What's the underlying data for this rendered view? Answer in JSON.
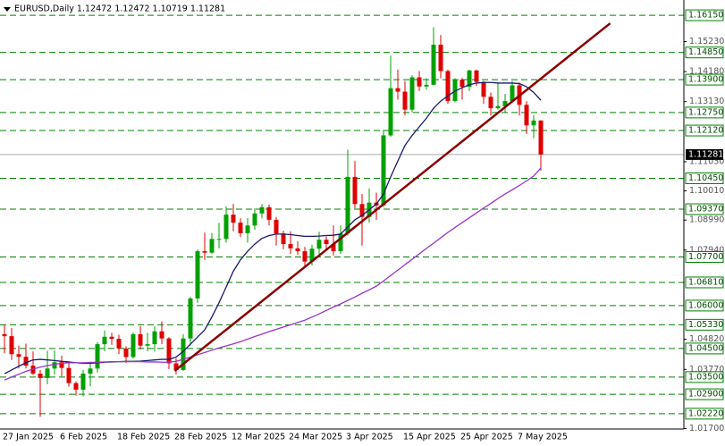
{
  "chart_data": {
    "type": "candlestick",
    "title": "EURUSD,Daily  1.12472 1.12472 1.10719 1.11281",
    "categories": [
      "27 Jan 2025",
      null,
      null,
      null,
      null,
      null,
      null,
      null,
      "6 Feb 2025",
      null,
      null,
      null,
      null,
      null,
      null,
      null,
      "18 Feb 2025",
      null,
      null,
      null,
      null,
      null,
      null,
      null,
      "28 Feb 2025",
      null,
      null,
      null,
      null,
      null,
      null,
      null,
      "12 Mar 2025",
      null,
      null,
      null,
      null,
      null,
      null,
      null,
      "24 Mar 2025",
      null,
      null,
      null,
      null,
      null,
      null,
      null,
      "3 Apr 2025",
      null,
      null,
      null,
      null,
      null,
      null,
      null,
      "15 Apr 2025",
      null,
      null,
      null,
      null,
      null,
      null,
      null,
      "25 Apr 2025",
      null,
      null,
      null,
      null,
      null,
      null,
      null,
      "7 May 2025",
      null,
      null,
      null
    ],
    "open": [
      1.05,
      1.0493,
      1.043,
      1.0421,
      1.039,
      1.0362,
      1.0347,
      1.038,
      1.0402,
      1.0382,
      1.0329,
      1.0306,
      1.0362,
      1.038,
      1.0465,
      1.0491,
      1.0484,
      1.045,
      1.042,
      1.05,
      1.046,
      1.0465,
      1.051,
      1.0485,
      1.0398,
      1.0375,
      1.0485,
      1.0625,
      1.079,
      1.0785,
      1.0833,
      1.0833,
      1.0918,
      1.089,
      1.0853,
      1.088,
      1.0922,
      1.0944,
      1.09,
      1.0852,
      1.0815,
      1.08,
      1.079,
      1.0754,
      1.0799,
      1.083,
      1.0815,
      1.079,
      1.0852,
      1.105,
      1.0955,
      1.091,
      1.096,
      1.095,
      1.1195,
      1.136,
      1.1348,
      1.1285,
      1.1398,
      1.1366,
      1.1372,
      1.1512,
      1.142,
      1.1315,
      1.139,
      1.1365,
      1.1422,
      1.1382,
      1.133,
      1.129,
      1.1297,
      1.1315,
      1.137,
      1.1302,
      1.123,
      1.12472
    ],
    "high": [
      1.0533,
      1.0522,
      1.046,
      1.0467,
      1.044,
      1.0375,
      1.0442,
      1.0443,
      1.0425,
      1.0398,
      1.0335,
      1.0375,
      1.0404,
      1.0472,
      1.0513,
      1.0505,
      1.0498,
      1.0458,
      1.0506,
      1.0528,
      1.0505,
      1.0527,
      1.0545,
      1.049,
      1.0415,
      1.05,
      1.063,
      1.0797,
      1.0855,
      1.0854,
      1.0889,
      1.0947,
      1.0955,
      1.0905,
      1.0906,
      1.094,
      1.0955,
      1.0953,
      1.091,
      1.0862,
      1.086,
      1.0825,
      1.0805,
      1.0813,
      1.0858,
      1.0842,
      1.088,
      1.088,
      1.1145,
      1.1105,
      1.099,
      1.101,
      1.0995,
      1.1214,
      1.1474,
      1.1425,
      1.1385,
      1.1405,
      1.142,
      1.1395,
      1.1573,
      1.1546,
      1.1425,
      1.1395,
      1.1396,
      1.1425,
      1.1425,
      1.1385,
      1.1345,
      1.138,
      1.134,
      1.1385,
      1.138,
      1.1315,
      1.1266,
      1.12472
    ],
    "low": [
      1.0434,
      1.041,
      1.038,
      1.038,
      1.0357,
      1.0211,
      1.0325,
      1.0359,
      1.0353,
      1.0317,
      1.0285,
      1.0283,
      1.0318,
      1.0366,
      1.044,
      1.0463,
      1.043,
      1.04,
      1.0415,
      1.0446,
      1.044,
      1.0439,
      1.0465,
      1.0378,
      1.036,
      1.0372,
      1.046,
      1.061,
      1.076,
      1.078,
      1.08,
      1.082,
      1.086,
      1.084,
      1.082,
      1.0865,
      1.0905,
      1.088,
      1.081,
      1.0797,
      1.078,
      1.0777,
      1.0733,
      1.074,
      1.078,
      1.0795,
      1.0775,
      1.078,
      1.0845,
      1.094,
      1.081,
      1.089,
      1.09,
      1.0945,
      1.119,
      1.132,
      1.1265,
      1.1275,
      1.135,
      1.1355,
      1.137,
      1.1395,
      1.1305,
      1.1311,
      1.132,
      1.135,
      1.1368,
      1.1305,
      1.1265,
      1.1285,
      1.1275,
      1.131,
      1.1265,
      1.12,
      1.1185,
      1.10719
    ],
    "close": [
      1.0493,
      1.043,
      1.0421,
      1.039,
      1.0362,
      1.0347,
      1.038,
      1.0402,
      1.0382,
      1.0329,
      1.0306,
      1.0362,
      1.038,
      1.0465,
      1.0491,
      1.0484,
      1.045,
      1.042,
      1.05,
      1.046,
      1.0465,
      1.051,
      1.0485,
      1.0398,
      1.0375,
      1.0485,
      1.0625,
      1.079,
      1.0785,
      1.0833,
      1.0833,
      1.0918,
      1.089,
      1.0853,
      1.088,
      1.0922,
      1.0944,
      1.09,
      1.0852,
      1.0815,
      1.08,
      1.079,
      1.0754,
      1.0799,
      1.083,
      1.0815,
      1.079,
      1.0852,
      1.105,
      1.0955,
      1.091,
      1.096,
      1.095,
      1.1195,
      1.136,
      1.1348,
      1.1285,
      1.1398,
      1.1366,
      1.1372,
      1.1512,
      1.142,
      1.1315,
      1.139,
      1.1365,
      1.1422,
      1.1382,
      1.133,
      1.129,
      1.1297,
      1.1315,
      1.137,
      1.1302,
      1.123,
      1.1247,
      1.11281
    ],
    "up_color": "#00a000",
    "down_color": "#e00000",
    "lines": [
      {
        "color": "#1a1a6e",
        "values": [
          1.0362,
          1.0375,
          1.0388,
          1.04,
          1.041,
          1.0412,
          1.041,
          1.0408,
          1.0405,
          1.0403,
          1.04,
          1.0398,
          1.0398,
          1.04,
          1.0402,
          1.0403,
          1.0404,
          1.0405,
          1.0405,
          1.0406,
          1.0408,
          1.041,
          1.0412,
          1.0412,
          1.042,
          1.044,
          1.0465,
          1.049,
          1.0515,
          1.056,
          1.061,
          1.0665,
          1.072,
          1.076,
          1.079,
          1.0815,
          1.0835,
          1.0845,
          1.085,
          1.085,
          1.0848,
          1.0845,
          1.0842,
          1.0842,
          1.0843,
          1.0845,
          1.0846,
          1.085,
          1.0875,
          1.09,
          1.0915,
          1.0935,
          1.0955,
          1.099,
          1.105,
          1.1105,
          1.116,
          1.1195,
          1.1225,
          1.1255,
          1.129,
          1.1315,
          1.1333,
          1.135,
          1.1362,
          1.1372,
          1.1378,
          1.138,
          1.138,
          1.1378,
          1.1378,
          1.1378,
          1.1376,
          1.1365,
          1.1345,
          1.1318
        ]
      },
      {
        "color": "#9933cc",
        "values": [
          1.034,
          1.035,
          1.036,
          1.037,
          1.0378,
          1.0385,
          1.039,
          1.0395,
          1.0398,
          1.04,
          1.04,
          1.04,
          1.0401,
          1.0402,
          1.0403,
          1.0404,
          1.0404,
          1.0404,
          1.0404,
          1.0404,
          1.0403,
          1.0403,
          1.0402,
          1.0402,
          1.0405,
          1.0412,
          1.042,
          1.0428,
          1.0436,
          1.0444,
          1.0452,
          1.0459,
          1.0466,
          1.0474,
          1.0483,
          1.0492,
          1.05,
          1.0509,
          1.0517,
          1.0525,
          1.0533,
          1.0541,
          1.0549,
          1.056,
          1.0571,
          1.0583,
          1.0595,
          1.0606,
          1.0618,
          1.063,
          1.0643,
          1.0655,
          1.0668,
          1.0686,
          1.0705,
          1.0724,
          1.0743,
          1.0762,
          1.0781,
          1.08,
          1.0818,
          1.0837,
          1.0856,
          1.0873,
          1.089,
          1.0907,
          1.0924,
          1.0941,
          1.0957,
          1.0974,
          1.099,
          1.1005,
          1.102,
          1.1036,
          1.1053,
          1.1081
        ]
      }
    ],
    "trendline": {
      "color": "#8b0000",
      "x": [
        23.8,
        84.7
      ],
      "values": [
        1.0372,
        1.1587
      ]
    },
    "ylim": [
      1.017,
      1.1659
    ],
    "yticks": [
      {
        "value": 1.1523,
        "label": "1.15230"
      },
      {
        "value": 1.1418,
        "label": "1.14180"
      },
      {
        "value": 1.1313,
        "label": "1.13130"
      },
      {
        "value": 1.1103,
        "label": "1.11030"
      },
      {
        "value": 1.1001,
        "label": "1.10010"
      },
      {
        "value": 1.0899,
        "label": "1.08990"
      },
      {
        "value": 1.0794,
        "label": "1.07940"
      },
      {
        "value": 1.0482,
        "label": "1.04820"
      },
      {
        "value": 1.0377,
        "label": "1.03770"
      },
      {
        "value": 1.017,
        "label": "1.01700"
      }
    ],
    "levels": [
      {
        "value": 1.1615,
        "label": "1.16150"
      },
      {
        "value": 1.1485,
        "label": "1.14850"
      },
      {
        "value": 1.139,
        "label": "1.13900"
      },
      {
        "value": 1.1275,
        "label": "1.12750"
      },
      {
        "value": 1.1212,
        "label": "1.12120"
      },
      {
        "value": 1.1045,
        "label": "1.10450"
      },
      {
        "value": 1.0937,
        "label": "1.09370"
      },
      {
        "value": 1.077,
        "label": "1.07700"
      },
      {
        "value": 1.0681,
        "label": "1.06810"
      },
      {
        "value": 1.06,
        "label": "1.06000"
      },
      {
        "value": 1.0533,
        "label": "1.05330"
      },
      {
        "value": 1.045,
        "label": "1.04500"
      },
      {
        "value": 1.035,
        "label": "1.03500"
      },
      {
        "value": 1.029,
        "label": "1.02900"
      },
      {
        "value": 1.0222,
        "label": "1.02220"
      }
    ],
    "level_color": "#008000",
    "current_price": {
      "value": 1.11281,
      "label": "1.11281"
    }
  }
}
